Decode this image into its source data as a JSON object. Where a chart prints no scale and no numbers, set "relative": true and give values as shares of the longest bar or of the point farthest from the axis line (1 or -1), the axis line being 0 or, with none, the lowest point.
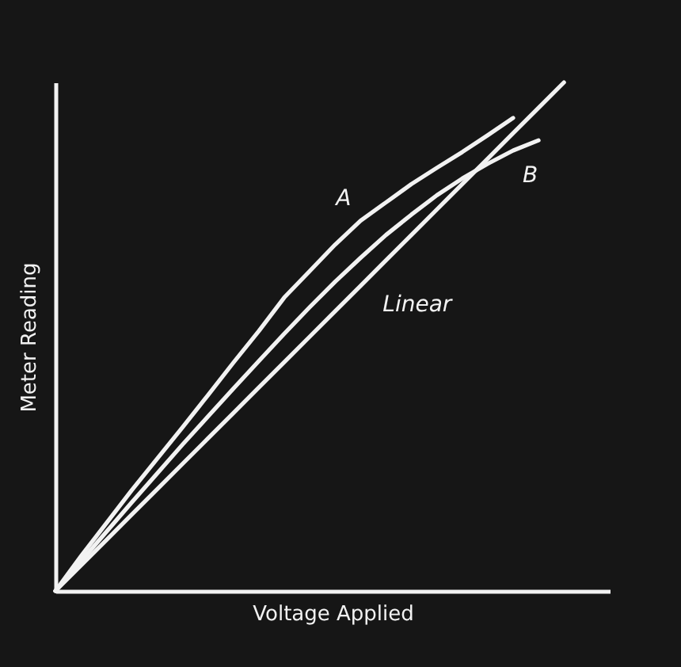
{
  "chart_data": {
    "type": "line",
    "relative": true,
    "xlabel": "Voltage Applied",
    "ylabel": "Meter Reading",
    "grid": false,
    "legend": false,
    "marker": "none",
    "line_style": "solid",
    "categories": [
      null,
      null,
      null,
      null,
      null,
      null,
      null,
      null,
      null,
      null,
      null,
      null,
      null,
      null,
      null,
      null,
      null,
      null,
      null,
      null,
      null
    ],
    "series": [
      {
        "name": "A",
        "color": "#f2f2f2",
        "values": [
          0,
          0.068,
          0.133,
          0.198,
          0.26,
          0.322,
          0.385,
          0.449,
          0.511,
          0.577,
          0.629,
          0.681,
          0.728,
          0.764,
          0.8,
          0.832,
          0.863,
          0.896,
          0.93,
          null,
          null
        ]
      },
      {
        "name": "B",
        "color": "#f2f2f2",
        "values": [
          0,
          0.058,
          0.116,
          0.174,
          0.231,
          0.288,
          0.343,
          0.398,
          0.452,
          0.506,
          0.558,
          0.608,
          0.655,
          0.7,
          0.74,
          0.778,
          0.811,
          0.84,
          0.866,
          0.886,
          null
        ]
      },
      {
        "name": "Linear",
        "color": "#f2f2f2",
        "values": [
          0,
          0.05,
          0.1,
          0.15,
          0.2,
          0.25,
          0.3,
          0.35,
          0.4,
          0.45,
          0.5,
          0.55,
          0.6,
          0.65,
          0.7,
          0.75,
          0.8,
          0.85,
          0.9,
          0.95,
          1
        ]
      }
    ]
  }
}
